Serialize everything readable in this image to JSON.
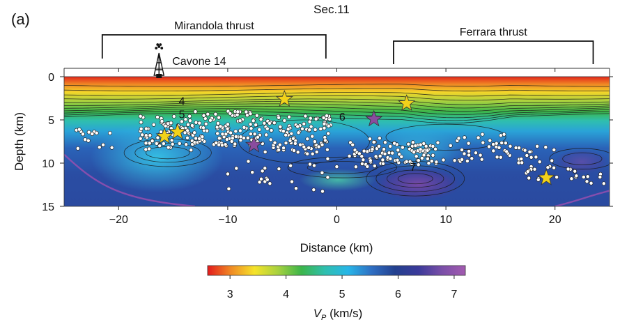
{
  "chart_data": {
    "type": "heatmap",
    "panel_label": "(a)",
    "title": "Sec.11",
    "xlabel": "Distance (km)",
    "ylabel": "Depth (km)",
    "xlim": [
      -25,
      25
    ],
    "ylim": [
      15,
      0
    ],
    "x_ticks": [
      -20,
      -10,
      0,
      10,
      20
    ],
    "y_ticks": [
      0,
      5,
      10,
      15
    ],
    "colorbar": {
      "label_main": "V",
      "label_sub": "P",
      "label_unit": " (km/s)",
      "range": [
        2.6,
        7.2
      ],
      "ticks": [
        3,
        4,
        5,
        6,
        7
      ],
      "colors": [
        "#e31a1c",
        "#f08a24",
        "#f5e32a",
        "#a7d13f",
        "#3bb54a",
        "#2fbfae",
        "#27b6e8",
        "#2f6fc3",
        "#23408f",
        "#3b3a9a",
        "#7a4fa8",
        "#a35bb0"
      ]
    },
    "contour_labels": [
      {
        "text": "4",
        "x": -14.2,
        "y": 2.8
      },
      {
        "text": "5",
        "x": -14.2,
        "y": 4.3
      },
      {
        "text": "6",
        "x": 0.5,
        "y": 4.6
      },
      {
        "text": "7",
        "x": 7.0,
        "y": 10.4
      }
    ],
    "annotations": {
      "mirandola": {
        "label": "Mirandola thrust",
        "x_start": -21.5,
        "x_end": -1.0
      },
      "ferrara": {
        "label": "Ferrara thrust",
        "x_start": 5.2,
        "x_end": 23.5
      },
      "well": {
        "label": "Cavone 14",
        "x": -16.3
      }
    },
    "stars": [
      {
        "x": -15.8,
        "y": 6.9,
        "color": "#f2d21a"
      },
      {
        "x": -14.6,
        "y": 6.4,
        "color": "#f2d21a"
      },
      {
        "x": -4.8,
        "y": 2.6,
        "color": "#f2d21a"
      },
      {
        "x": 6.4,
        "y": 3.1,
        "color": "#f2d21a"
      },
      {
        "x": 19.2,
        "y": 11.7,
        "color": "#f2d21a"
      },
      {
        "x": -7.6,
        "y": 7.9,
        "color": "#8a4c9e"
      },
      {
        "x": 3.4,
        "y": 4.9,
        "color": "#8a4c9e"
      }
    ]
  }
}
